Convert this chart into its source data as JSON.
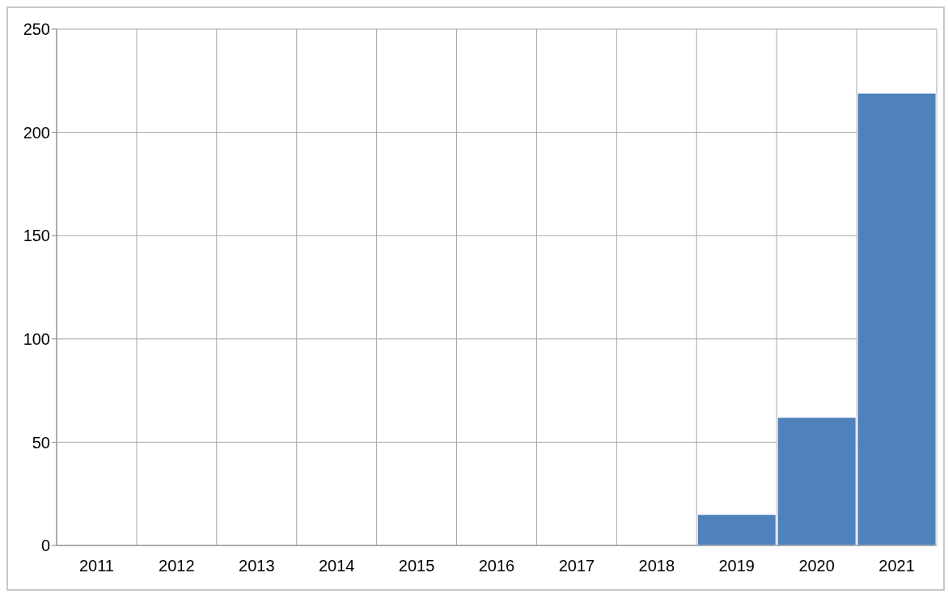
{
  "chart_data": {
    "type": "bar",
    "categories": [
      "2011",
      "2012",
      "2013",
      "2014",
      "2015",
      "2016",
      "2017",
      "2018",
      "2019",
      "2020",
      "2021"
    ],
    "values": [
      null,
      null,
      null,
      null,
      null,
      null,
      null,
      null,
      15,
      62,
      219
    ],
    "color": "#4f81bd",
    "ylim": [
      0,
      250
    ],
    "yticks": [
      0,
      50,
      100,
      150,
      200,
      250
    ],
    "grid": true
  }
}
